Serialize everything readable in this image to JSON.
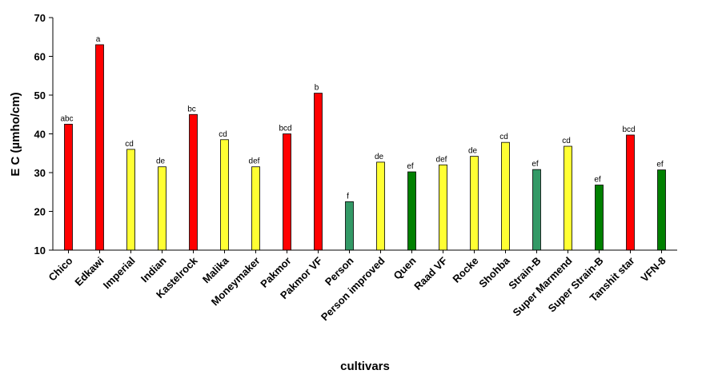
{
  "chart_data": {
    "type": "bar",
    "xlabel": "cultivars",
    "ylabel": "E C (µmho/cm)",
    "ylim": [
      10,
      70
    ],
    "yticks": [
      10,
      20,
      30,
      40,
      50,
      60,
      70
    ],
    "grid": false,
    "legend": "none",
    "colors": {
      "red": "#ff0000",
      "yellow": "#ffff33",
      "mid-green": "#339966",
      "dark-green": "#008000",
      "outline": "#000000"
    },
    "categories": [
      "Chico",
      "Edkawi",
      "Imperial",
      "Indian",
      "Kastelrock",
      "Malika",
      "Moneymaker",
      "Pakmor",
      "Pakmor VF",
      "Person",
      "Person improved",
      "Quen",
      "Raad VF",
      "Rocke",
      "Shohba",
      "Strain-B",
      "Super Marmend",
      "Super Strain-B",
      "Tanshit star",
      "VFN-8"
    ],
    "values": [
      42.5,
      63.0,
      36.0,
      31.5,
      45.0,
      38.5,
      31.5,
      40.0,
      50.5,
      22.5,
      32.7,
      30.2,
      32.0,
      34.2,
      37.8,
      30.8,
      36.8,
      26.8,
      39.7,
      30.7
    ],
    "bar_colors": [
      "red",
      "red",
      "yellow",
      "yellow",
      "red",
      "yellow",
      "yellow",
      "red",
      "red",
      "mid-green",
      "yellow",
      "dark-green",
      "yellow",
      "yellow",
      "yellow",
      "mid-green",
      "yellow",
      "dark-green",
      "red",
      "dark-green"
    ],
    "significance_labels": [
      "abc",
      "a",
      "cd",
      "de",
      "bc",
      "cd",
      "def",
      "bcd",
      "b",
      "f",
      "de",
      "ef",
      "def",
      "de",
      "cd",
      "ef",
      "cd",
      "ef",
      "bcd",
      "ef"
    ]
  }
}
